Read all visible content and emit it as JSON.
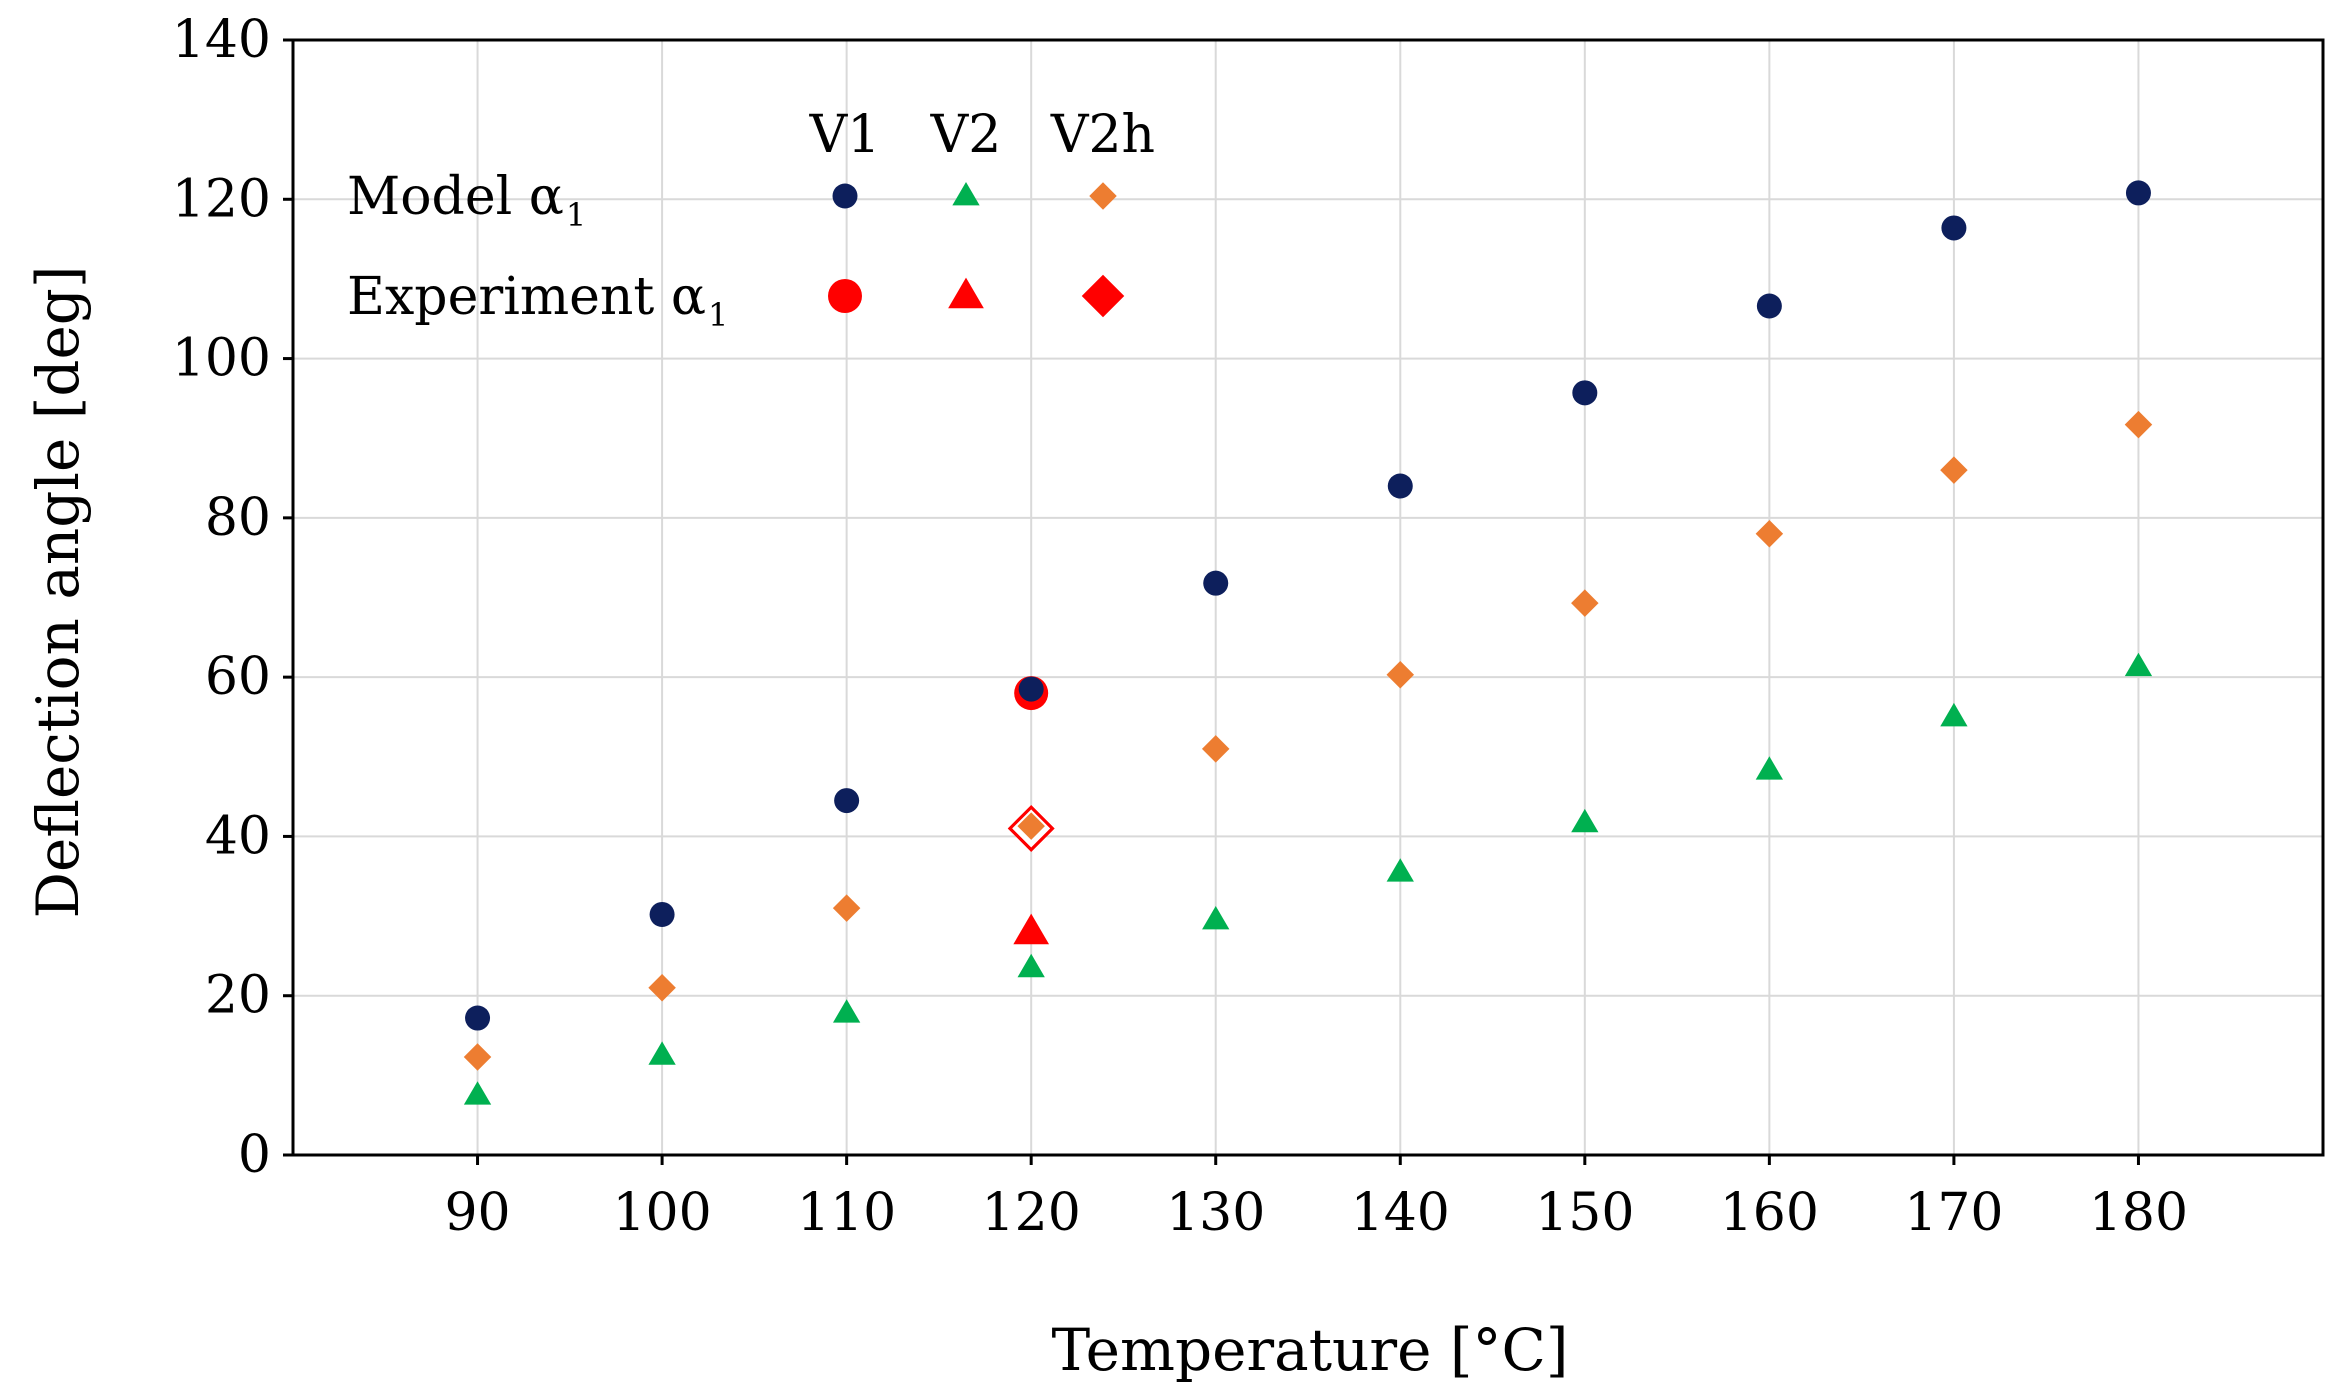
{
  "chart_data": {
    "type": "scatter",
    "title": "",
    "xlabel": "Temperature [°C]",
    "ylabel": "Deflection angle [deg]",
    "xlim": [
      80,
      190
    ],
    "ylim": [
      0,
      140
    ],
    "x_ticks": [
      90,
      100,
      110,
      120,
      130,
      140,
      150,
      160,
      170,
      180
    ],
    "y_ticks": [
      0,
      20,
      40,
      60,
      80,
      100,
      120,
      140
    ],
    "grid": true,
    "legend": {
      "placement": "top-left",
      "column_headers": [
        "V1",
        "V2",
        "V2h"
      ],
      "rows": [
        {
          "label": "Model α",
          "subscript": "1",
          "group": "model"
        },
        {
          "label": "Experiment α",
          "subscript": "1",
          "group": "experiment"
        }
      ]
    },
    "series": [
      {
        "name": "Model α1 V1",
        "group": "model",
        "variant": "V1",
        "marker": "circle",
        "color": "#0d1f5c",
        "x": [
          90,
          100,
          110,
          120,
          130,
          140,
          150,
          160,
          170,
          180
        ],
        "y": [
          17.2,
          30.2,
          44.5,
          58.5,
          71.8,
          84.0,
          95.7,
          106.6,
          116.4,
          120.8
        ]
      },
      {
        "name": "Model α1 V2",
        "group": "model",
        "variant": "V2",
        "marker": "triangle",
        "color": "#00b050",
        "x": [
          90,
          100,
          110,
          120,
          130,
          140,
          150,
          160,
          170,
          180
        ],
        "y": [
          7.5,
          12.5,
          17.8,
          23.5,
          29.5,
          35.5,
          41.7,
          48.3,
          55.0,
          61.3
        ]
      },
      {
        "name": "Model α1 V2h",
        "group": "model",
        "variant": "V2h",
        "marker": "diamond",
        "color": "#ed7d31",
        "x": [
          90,
          100,
          110,
          120,
          130,
          140,
          150,
          160,
          170,
          180
        ],
        "y": [
          12.3,
          21.0,
          31.0,
          41.3,
          51.0,
          60.3,
          69.3,
          78.0,
          86.0,
          91.7
        ]
      },
      {
        "name": "Experiment α1 V1",
        "group": "experiment",
        "variant": "V1",
        "marker": "circle",
        "color": "#ff0000",
        "x": [
          120
        ],
        "y": [
          58.0
        ]
      },
      {
        "name": "Experiment α1 V2",
        "group": "experiment",
        "variant": "V2",
        "marker": "triangle",
        "color": "#ff0000",
        "x": [
          120
        ],
        "y": [
          28.0
        ]
      },
      {
        "name": "Experiment α1 V2h",
        "group": "experiment",
        "variant": "V2h",
        "marker": "diamond",
        "color": "#ff0000",
        "x": [
          120
        ],
        "y": [
          41.0
        ]
      }
    ]
  }
}
